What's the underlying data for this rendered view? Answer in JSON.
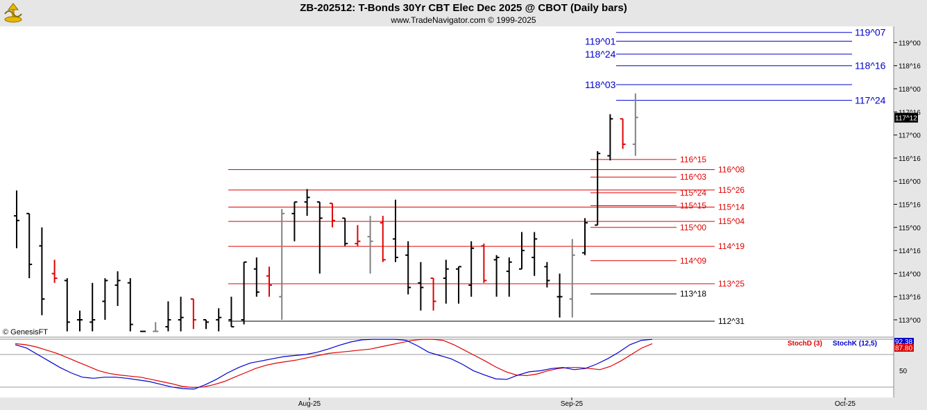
{
  "header": {
    "title": "ZB-202512:  T-Bonds 30Yr CBT Elec Dec 2025 @ CBOT  (Daily bars)",
    "subtitle": "www.TradeNavigator.com © 1999-2025"
  },
  "watermark": "© GenesisFT",
  "colors": {
    "background": "#ffffff",
    "header_bg": "#e6e6e6",
    "up_bar": "#000000",
    "down_bar": "#e00000",
    "neutral_bar": "#808080",
    "blue_level": "#0000cc",
    "red_level": "#e00000",
    "stoch_d": "#e00000",
    "stoch_k": "#0000cc"
  },
  "chart_data": [
    {
      "type": "ohlc",
      "title": "ZB-202512 Daily bars",
      "y_axis_ticks": [
        "119^00",
        "118^16",
        "118^00",
        "117^16",
        "117^00",
        "116^16",
        "116^00",
        "115^16",
        "115^00",
        "114^16",
        "114^00",
        "113^16",
        "113^00"
      ],
      "ylim": [
        112.75,
        119.5
      ],
      "last_price_label": "117^12",
      "x_axis_labels": [
        {
          "label": "Aug-25",
          "date": "2025-08-01"
        },
        {
          "label": "Sep-25",
          "date": "2025-09-02"
        },
        {
          "label": "Oct-25",
          "date": "2025-10-01"
        }
      ],
      "bars": [
        {
          "o": 115.25,
          "h": 115.8,
          "l": 114.55,
          "c": 115.15,
          "color": "black"
        },
        {
          "o": 115.3,
          "h": 115.3,
          "l": 113.9,
          "c": 114.2,
          "color": "black"
        },
        {
          "o": 114.6,
          "h": 115.0,
          "l": 113.1,
          "c": 113.45,
          "color": "black"
        },
        {
          "o": 114.0,
          "h": 114.3,
          "l": 113.8,
          "c": 113.9,
          "color": "red"
        },
        {
          "o": 113.85,
          "h": 113.9,
          "l": 112.75,
          "c": 112.95,
          "color": "black"
        },
        {
          "o": 113.0,
          "h": 113.2,
          "l": 112.75,
          "c": 113.0,
          "color": "black"
        },
        {
          "o": 112.95,
          "h": 113.8,
          "l": 112.75,
          "c": 113.0,
          "color": "black"
        },
        {
          "o": 113.4,
          "h": 113.9,
          "l": 113.0,
          "c": 113.85,
          "color": "black"
        },
        {
          "o": 113.75,
          "h": 114.05,
          "l": 113.3,
          "c": 113.85,
          "color": "black"
        },
        {
          "o": 113.8,
          "h": 113.9,
          "l": 112.75,
          "c": 112.9,
          "color": "black"
        },
        {
          "o": 112.75,
          "h": 112.75,
          "l": 112.75,
          "c": 112.75,
          "color": "black"
        },
        {
          "o": 112.75,
          "h": 112.95,
          "l": 112.75,
          "c": 112.75,
          "color": "gray"
        },
        {
          "o": 112.85,
          "h": 113.4,
          "l": 112.75,
          "c": 113.0,
          "color": "black"
        },
        {
          "o": 113.0,
          "h": 113.5,
          "l": 112.75,
          "c": 113.05,
          "color": "black"
        },
        {
          "o": 113.45,
          "h": 113.45,
          "l": 112.8,
          "c": 113.0,
          "color": "red"
        },
        {
          "o": 113.0,
          "h": 113.0,
          "l": 112.8,
          "c": 112.95,
          "color": "black"
        },
        {
          "o": 113.0,
          "h": 113.25,
          "l": 112.75,
          "c": 113.05,
          "color": "black"
        },
        {
          "o": 113.0,
          "h": 113.5,
          "l": 112.85,
          "c": 112.85,
          "color": "black"
        },
        {
          "o": 113.0,
          "h": 114.25,
          "l": 112.9,
          "c": 114.25,
          "color": "black"
        },
        {
          "o": 114.1,
          "h": 114.35,
          "l": 113.5,
          "c": 113.6,
          "color": "black"
        },
        {
          "o": 113.95,
          "h": 114.15,
          "l": 113.5,
          "c": 113.75,
          "color": "red"
        },
        {
          "o": 113.5,
          "h": 115.4,
          "l": 113.0,
          "c": 115.3,
          "color": "gray"
        },
        {
          "o": 115.3,
          "h": 115.55,
          "l": 114.7,
          "c": 115.55,
          "color": "black"
        },
        {
          "o": 115.55,
          "h": 115.83,
          "l": 115.25,
          "c": 115.65,
          "color": "black"
        },
        {
          "o": 115.55,
          "h": 115.55,
          "l": 114.0,
          "c": 115.2,
          "color": "black"
        },
        {
          "o": 115.52,
          "h": 115.52,
          "l": 115.0,
          "c": 115.15,
          "color": "red"
        },
        {
          "o": 115.2,
          "h": 115.2,
          "l": 114.6,
          "c": 114.65,
          "color": "black"
        },
        {
          "o": 114.65,
          "h": 115.05,
          "l": 114.6,
          "c": 114.7,
          "color": "red"
        },
        {
          "o": 114.8,
          "h": 115.25,
          "l": 114.0,
          "c": 114.7,
          "color": "gray"
        },
        {
          "o": 115.1,
          "h": 115.25,
          "l": 114.25,
          "c": 114.3,
          "color": "red"
        },
        {
          "o": 114.75,
          "h": 115.6,
          "l": 114.25,
          "c": 114.35,
          "color": "black"
        },
        {
          "o": 114.4,
          "h": 114.7,
          "l": 113.55,
          "c": 113.7,
          "color": "black"
        },
        {
          "o": 113.8,
          "h": 114.25,
          "l": 113.2,
          "c": 113.7,
          "color": "black"
        },
        {
          "o": 113.9,
          "h": 113.9,
          "l": 113.2,
          "c": 113.4,
          "color": "red"
        },
        {
          "o": 113.9,
          "h": 114.3,
          "l": 113.35,
          "c": 114.1,
          "color": "black"
        },
        {
          "o": 114.1,
          "h": 114.15,
          "l": 113.35,
          "c": 114.15,
          "color": "black"
        },
        {
          "o": 113.75,
          "h": 114.7,
          "l": 113.5,
          "c": 114.55,
          "color": "black"
        },
        {
          "o": 114.6,
          "h": 114.65,
          "l": 113.8,
          "c": 113.85,
          "color": "red"
        },
        {
          "o": 114.3,
          "h": 114.4,
          "l": 113.5,
          "c": 114.35,
          "color": "black"
        },
        {
          "o": 114.05,
          "h": 114.35,
          "l": 113.5,
          "c": 114.25,
          "color": "black"
        },
        {
          "o": 114.1,
          "h": 114.9,
          "l": 114.1,
          "c": 114.5,
          "color": "black"
        },
        {
          "o": 114.35,
          "h": 114.9,
          "l": 113.95,
          "c": 114.75,
          "color": "black"
        },
        {
          "o": 114.15,
          "h": 114.25,
          "l": 113.7,
          "c": 113.85,
          "color": "black"
        },
        {
          "o": 113.5,
          "h": 114.0,
          "l": 113.05,
          "c": 113.5,
          "color": "black"
        },
        {
          "o": 113.45,
          "h": 114.75,
          "l": 113.05,
          "c": 114.4,
          "color": "gray"
        },
        {
          "o": 114.45,
          "h": 115.2,
          "l": 114.4,
          "c": 115.1,
          "color": "black"
        },
        {
          "o": 115.05,
          "h": 116.65,
          "l": 115.05,
          "c": 116.6,
          "color": "black"
        },
        {
          "o": 116.55,
          "h": 117.45,
          "l": 116.45,
          "c": 117.35,
          "color": "black"
        },
        {
          "o": 117.35,
          "h": 117.35,
          "l": 116.7,
          "c": 116.8,
          "color": "red"
        },
        {
          "o": 116.8,
          "h": 117.9,
          "l": 116.55,
          "c": 117.38,
          "color": "gray"
        }
      ],
      "levels_blue": [
        {
          "label": "119^07",
          "value": 119.22,
          "side": "right"
        },
        {
          "label": "119^01",
          "value": 119.03,
          "side": "left"
        },
        {
          "label": "118^24",
          "value": 118.75,
          "side": "left"
        },
        {
          "label": "118^16",
          "value": 118.5,
          "side": "right"
        },
        {
          "label": "118^03",
          "value": 118.09,
          "side": "left"
        },
        {
          "label": "117^24",
          "value": 117.75,
          "side": "right"
        }
      ],
      "levels_red": [
        {
          "label": "116^15",
          "value": 116.47,
          "side": "short"
        },
        {
          "label": "116^08",
          "value": 116.25,
          "side": "long"
        },
        {
          "label": "116^03",
          "value": 116.09,
          "side": "short"
        },
        {
          "label": "115^26",
          "value": 115.81,
          "side": "long"
        },
        {
          "label": "115^24",
          "value": 115.75,
          "side": "short"
        },
        {
          "label": "115^15",
          "value": 115.47,
          "side": "short"
        },
        {
          "label": "115^14",
          "value": 115.44,
          "side": "long"
        },
        {
          "label": "115^04",
          "value": 115.13,
          "side": "long"
        },
        {
          "label": "115^00",
          "value": 115.0,
          "side": "short"
        },
        {
          "label": "114^19",
          "value": 114.59,
          "side": "long"
        },
        {
          "label": "114^09",
          "value": 114.28,
          "side": "short"
        },
        {
          "label": "113^25",
          "value": 113.78,
          "side": "long"
        }
      ],
      "levels_black": [
        {
          "label": "113^18",
          "value": 113.56,
          "side": "short"
        },
        {
          "label": "112^31",
          "value": 112.97,
          "side": "long"
        }
      ]
    },
    {
      "type": "line",
      "title": "Stochastic",
      "ylim": [
        0,
        100
      ],
      "y_axis_ticks": [
        "50"
      ],
      "legend": [
        "StochD (3)",
        "StochK (12,5)"
      ],
      "series": [
        {
          "name": "StochD (3)",
          "color": "#e00000",
          "values": [
            88,
            86,
            82,
            76,
            70,
            62,
            54,
            46,
            38,
            33,
            30,
            28,
            26,
            22,
            18,
            14,
            9,
            7,
            8,
            12,
            18,
            26,
            34,
            42,
            48,
            52,
            55,
            58,
            62,
            66,
            70,
            72,
            74,
            76,
            78,
            82,
            86,
            90,
            94,
            96,
            96,
            94,
            86,
            76,
            66,
            56,
            45,
            36,
            30,
            29,
            32,
            38,
            42,
            44,
            44,
            42,
            40,
            46,
            56,
            68,
            80,
            88
          ]
        },
        {
          "name": "StochK (12,5)",
          "color": "#0000cc",
          "values": [
            86,
            80,
            68,
            56,
            44,
            34,
            26,
            24,
            26,
            26,
            24,
            21,
            18,
            13,
            8,
            5,
            4,
            12,
            22,
            34,
            44,
            52,
            56,
            60,
            64,
            66,
            68,
            72,
            78,
            85,
            91,
            95,
            96,
            96,
            96,
            94,
            84,
            72,
            66,
            60,
            50,
            38,
            30,
            23,
            22,
            30,
            36,
            38,
            42,
            44,
            40,
            42,
            50,
            60,
            72,
            86,
            94,
            96
          ]
        }
      ],
      "last_values": [
        "92.38",
        "87.80"
      ]
    }
  ]
}
